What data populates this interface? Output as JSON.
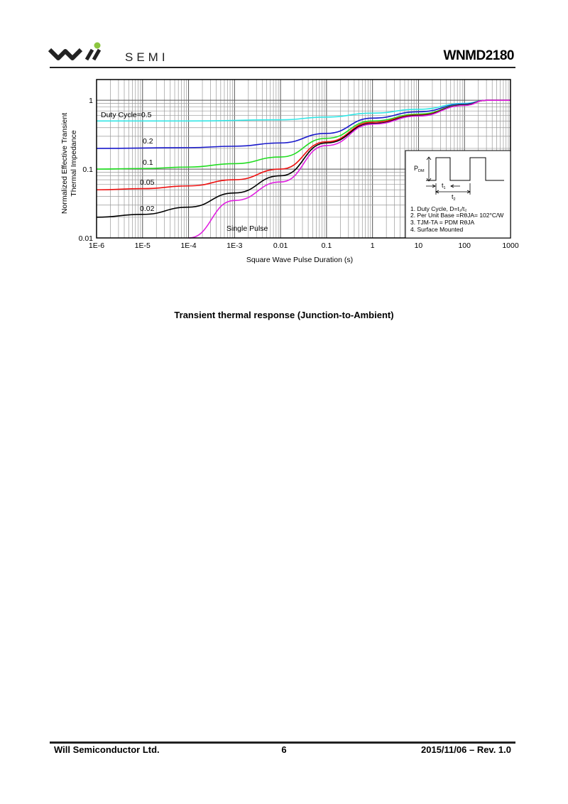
{
  "header": {
    "logo_text": "SEMI",
    "logo_brand": "Will",
    "part_number": "WNMD2180"
  },
  "figure_caption": "Transient thermal response (Junction-to-Ambient)",
  "footer": {
    "company": "Will Semiconductor Ltd.",
    "page": "6",
    "date_rev": "2015/11/06 – Rev. 1.0"
  },
  "colors": {
    "logo_dot": "#8cc63f"
  },
  "chart_data": {
    "type": "line",
    "xlabel": "Square Wave Pulse Duration (s)",
    "ylabel_line1": "Normalized Effective Transient",
    "ylabel_line2": "Thermal Impedance",
    "x_scale": "log",
    "y_scale": "log",
    "xlim": [
      1e-06,
      1000
    ],
    "ylim": [
      0.01,
      2
    ],
    "grid": true,
    "x_ticks": [
      "1E-6",
      "1E-5",
      "1E-4",
      "1E-3",
      "0.01",
      "0.1",
      "1",
      "10",
      "100",
      "1000"
    ],
    "y_ticks": [
      "0.01",
      "0.1",
      "1"
    ],
    "series": [
      {
        "name": "Duty Cycle=0.5",
        "label": "Duty Cycle=0.5",
        "color": "#33e6e6",
        "x": [
          1e-06,
          0.0001,
          0.01,
          0.1,
          1,
          10,
          100,
          300,
          1000
        ],
        "y": [
          0.5,
          0.5,
          0.52,
          0.57,
          0.65,
          0.74,
          0.9,
          1,
          1
        ]
      },
      {
        "name": "0.2",
        "label": "0.2",
        "color": "#1a1acc",
        "x": [
          1e-06,
          0.0001,
          0.001,
          0.01,
          0.1,
          1,
          10,
          100,
          300,
          1000
        ],
        "y": [
          0.2,
          0.205,
          0.215,
          0.24,
          0.33,
          0.55,
          0.68,
          0.88,
          1,
          1
        ]
      },
      {
        "name": "0.1",
        "label": "0.1",
        "color": "#22dd22",
        "x": [
          1e-06,
          1e-05,
          0.0001,
          0.001,
          0.01,
          0.1,
          1,
          10,
          100,
          300,
          1000
        ],
        "y": [
          0.1,
          0.102,
          0.107,
          0.12,
          0.15,
          0.28,
          0.5,
          0.63,
          0.86,
          1,
          1
        ]
      },
      {
        "name": "0.05",
        "label": "0.05",
        "color": "#ee1111",
        "x": [
          1e-06,
          1e-05,
          0.0001,
          0.001,
          0.01,
          0.1,
          1,
          10,
          100,
          300,
          1000
        ],
        "y": [
          0.05,
          0.052,
          0.057,
          0.07,
          0.1,
          0.25,
          0.48,
          0.61,
          0.85,
          1,
          1
        ]
      },
      {
        "name": "0.02",
        "label": "0.02",
        "color": "#000000",
        "x": [
          1e-06,
          1e-05,
          0.0001,
          0.001,
          0.01,
          0.1,
          1,
          10,
          100,
          300,
          1000
        ],
        "y": [
          0.02,
          0.022,
          0.028,
          0.045,
          0.08,
          0.24,
          0.46,
          0.6,
          0.85,
          1,
          1
        ]
      },
      {
        "name": "Single Pulse",
        "label": "Single Pulse",
        "color": "#e020e0",
        "x": [
          0.0001,
          0.001,
          0.01,
          0.1,
          1,
          10,
          100,
          300,
          1000
        ],
        "y": [
          0.01,
          0.035,
          0.065,
          0.22,
          0.45,
          0.59,
          0.84,
          1,
          1
        ]
      }
    ],
    "inset": {
      "pdm": "P",
      "pdm_sub": "DM",
      "t1": "t",
      "t1_sub": "1",
      "t2": "t",
      "t2_sub": "2",
      "notes": [
        "1. Duty Cycle, D=t₁/t₂",
        "2. Per Unit Base =RθJA= 102°C/W",
        "3. TJM-TA = PDM RθJA",
        "4. Surface Mounted"
      ]
    }
  }
}
